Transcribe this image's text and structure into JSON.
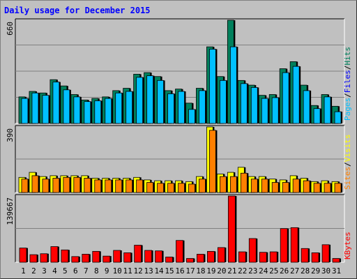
{
  "title": "Daily usage for December 2015",
  "colors": {
    "background": "#c0c0c0",
    "hits": "#00805c",
    "files": "#00c0ff",
    "sites": "#ff8000",
    "visits": "#ffff00",
    "kbytes": "#ff0000",
    "title": "#0000ff",
    "weekend": "#00805c"
  },
  "weekend_days": [
    5,
    6,
    12,
    13,
    19,
    20,
    26,
    27
  ],
  "chart_data": [
    {
      "type": "bar",
      "panel": "hits_files",
      "ymax_label": "660",
      "ylim": [
        0,
        660
      ],
      "legend_parts": [
        "Pages",
        "Files",
        "Hits"
      ],
      "legend_separator": "/",
      "categories": [
        "1",
        "2",
        "3",
        "4",
        "5",
        "6",
        "7",
        "8",
        "9",
        "10",
        "11",
        "12",
        "13",
        "14",
        "15",
        "16",
        "17",
        "18",
        "19",
        "20",
        "21",
        "22",
        "23",
        "24",
        "25",
        "26",
        "27",
        "28",
        "29",
        "30",
        "31"
      ],
      "series": [
        {
          "name": "Hits",
          "values": [
            170,
            205,
            195,
            280,
            240,
            185,
            150,
            160,
            170,
            210,
            225,
            315,
            325,
            300,
            210,
            220,
            130,
            225,
            490,
            300,
            660,
            275,
            245,
            180,
            185,
            350,
            395,
            245,
            115,
            185,
            110
          ]
        },
        {
          "name": "Files",
          "values": [
            160,
            195,
            180,
            265,
            215,
            170,
            140,
            145,
            160,
            195,
            205,
            295,
            305,
            275,
            190,
            205,
            90,
            210,
            475,
            275,
            490,
            255,
            230,
            160,
            165,
            325,
            365,
            210,
            95,
            170,
            75
          ]
        },
        {
          "name": "Pages",
          "values": [
            0,
            0,
            0,
            0,
            0,
            0,
            0,
            0,
            0,
            0,
            0,
            0,
            0,
            0,
            0,
            0,
            0,
            0,
            0,
            0,
            0,
            0,
            0,
            0,
            0,
            0,
            0,
            0,
            0,
            0,
            0
          ]
        }
      ]
    },
    {
      "type": "bar",
      "panel": "sites_visits",
      "ymax_label": "390",
      "ylim": [
        0,
        390
      ],
      "legend_parts": [
        "Sites",
        "Visits"
      ],
      "legend_separator": "/",
      "categories": [
        "1",
        "2",
        "3",
        "4",
        "5",
        "6",
        "7",
        "8",
        "9",
        "10",
        "11",
        "12",
        "13",
        "14",
        "15",
        "16",
        "17",
        "18",
        "19",
        "20",
        "21",
        "22",
        "23",
        "24",
        "25",
        "26",
        "27",
        "28",
        "29",
        "30",
        "31"
      ],
      "series": [
        {
          "name": "Visits",
          "values": [
            90,
            120,
            95,
            100,
            100,
            100,
            100,
            85,
            85,
            85,
            85,
            90,
            75,
            70,
            70,
            70,
            65,
            95,
            390,
            110,
            120,
            150,
            95,
            95,
            80,
            75,
            100,
            85,
            65,
            70,
            65
          ]
        },
        {
          "name": "Sites",
          "values": [
            80,
            100,
            80,
            85,
            90,
            90,
            85,
            75,
            75,
            75,
            75,
            75,
            60,
            55,
            55,
            55,
            50,
            80,
            370,
            95,
            95,
            115,
            80,
            80,
            60,
            60,
            80,
            70,
            55,
            55,
            55
          ]
        }
      ]
    },
    {
      "type": "bar",
      "panel": "kbytes",
      "ymax_label": "139667",
      "ylim": [
        0,
        139667
      ],
      "legend_parts": [
        "KBytes"
      ],
      "legend_separator": "",
      "categories": [
        "1",
        "2",
        "3",
        "4",
        "5",
        "6",
        "7",
        "8",
        "9",
        "10",
        "11",
        "12",
        "13",
        "14",
        "15",
        "16",
        "17",
        "18",
        "19",
        "20",
        "21",
        "22",
        "23",
        "24",
        "25",
        "26",
        "27",
        "28",
        "29",
        "30",
        "31"
      ],
      "series": [
        {
          "name": "KBytes",
          "values": [
            30000,
            16000,
            18000,
            33000,
            26000,
            12000,
            17000,
            23000,
            13000,
            25000,
            20000,
            36000,
            25000,
            24000,
            11000,
            46000,
            8000,
            17000,
            23000,
            31000,
            139667,
            22000,
            50000,
            21000,
            22000,
            71000,
            73000,
            29000,
            20000,
            37000,
            8000
          ]
        }
      ]
    }
  ]
}
